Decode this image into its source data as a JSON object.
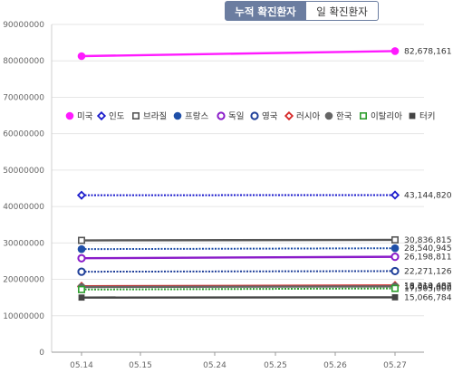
{
  "tabs": {
    "cumulative": "누적 확진환자",
    "daily": "일 확진환자"
  },
  "chart_data": {
    "type": "line",
    "x": [
      "05.14",
      "05.15",
      "05.24",
      "05.25",
      "05.26",
      "05.27"
    ],
    "ylim": [
      0,
      90000000
    ],
    "yticks": [
      "0",
      "10000000",
      "20000000",
      "30000000",
      "40000000",
      "50000000",
      "60000000",
      "70000000",
      "80000000",
      "90000000"
    ],
    "grid": true,
    "legend_position": "top-left (inside plot)",
    "series": [
      {
        "name": "미국",
        "color": "#ff1aff",
        "marker": "filled-circle",
        "dotted": false,
        "start": 81300000,
        "end": 82678161,
        "end_label": "82,678,161"
      },
      {
        "name": "인도",
        "color": "#1a1acc",
        "marker": "diamond",
        "dotted": true,
        "start": 43100000,
        "end": 43144820,
        "end_label": "43,144,820"
      },
      {
        "name": "브라질",
        "color": "#555555",
        "marker": "square",
        "dotted": false,
        "start": 30700000,
        "end": 30836815,
        "end_label": "30,836,815"
      },
      {
        "name": "프랑스",
        "color": "#1f4fa8",
        "marker": "filled-circle",
        "dotted": true,
        "start": 28300000,
        "end": 28540945,
        "end_label": "28,540,945"
      },
      {
        "name": "독일",
        "color": "#8a1cc9",
        "marker": "circle",
        "dotted": false,
        "start": 25800000,
        "end": 26198811,
        "end_label": "26,198,811"
      },
      {
        "name": "영국",
        "color": "#1f3f99",
        "marker": "circle",
        "dotted": true,
        "start": 22100000,
        "end": 22271126,
        "end_label": "22,271,126"
      },
      {
        "name": "러시아",
        "color": "#d62828",
        "marker": "diamond",
        "dotted": false,
        "start": 18100000,
        "end": 18310487,
        "end_label": "18,310,487"
      },
      {
        "name": "한국",
        "color": "#666666",
        "marker": "filled-circle",
        "dotted": false,
        "start": 17900000,
        "end": 18064000,
        "end_label": "18,064,000"
      },
      {
        "name": "이탈리아",
        "color": "#2e9e2e",
        "marker": "square",
        "dotted": true,
        "start": 17200000,
        "end": 17505000,
        "end_label": "17,505,000"
      },
      {
        "name": "터키",
        "color": "#444444",
        "marker": "filled-square",
        "dotted": false,
        "start": 15000000,
        "end": 15066784,
        "end_label": "15,066,784"
      }
    ]
  }
}
